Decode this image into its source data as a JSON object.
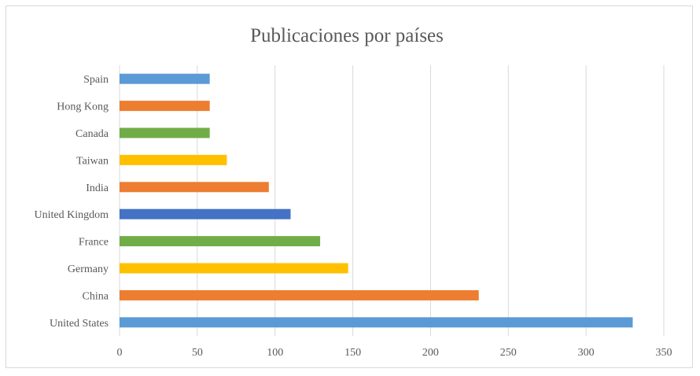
{
  "chart_data": {
    "type": "bar",
    "orientation": "horizontal",
    "title": "Publicaciones por países",
    "xlabel": "",
    "ylabel": "",
    "categories": [
      "United States",
      "China",
      "Germany",
      "France",
      "United Kingdom",
      "India",
      "Taiwan",
      "Canada",
      "Hong Kong",
      "Spain"
    ],
    "values": [
      330,
      231,
      147,
      129,
      110,
      96,
      69,
      58,
      58,
      58
    ],
    "colors": [
      "#5b9bd5",
      "#ed7d31",
      "#ffc000",
      "#70ad47",
      "#4472c4",
      "#ed7d31",
      "#ffc000",
      "#70ad47",
      "#ed7d31",
      "#5b9bd5"
    ],
    "xlim": [
      0,
      350
    ],
    "xticks": [
      0,
      50,
      100,
      150,
      200,
      250,
      300,
      350
    ],
    "grid": "vertical",
    "legend": "none"
  }
}
